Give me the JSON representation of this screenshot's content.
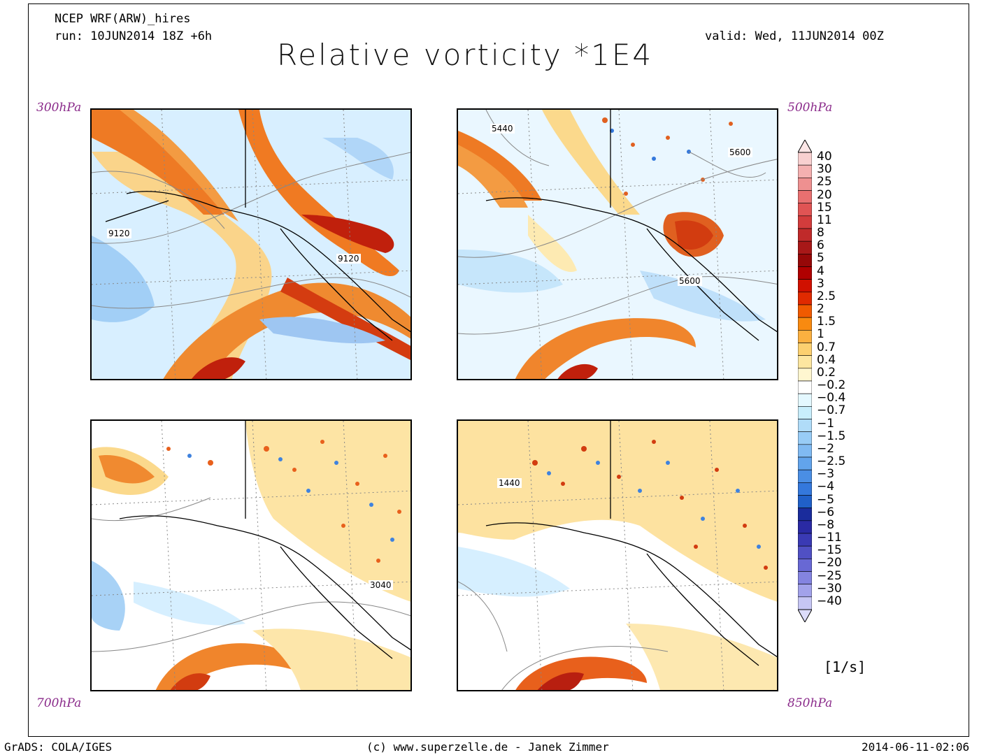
{
  "header": {
    "model": "NCEP WRF(ARW)_hires",
    "run": "run: 10JUN2014 18Z +6h",
    "valid": "valid: Wed, 11JUN2014 00Z",
    "title": "Relative vorticity *1E4"
  },
  "panels": [
    {
      "id": "p300",
      "level": "300hPa",
      "contours": [
        "9120",
        "9120"
      ],
      "colors": {
        "core": "#b81f10",
        "warm": "#f0701c"
      }
    },
    {
      "id": "p500",
      "level": "500hPa",
      "contours": [
        "5440",
        "5600",
        "5600"
      ]
    },
    {
      "id": "p700",
      "level": "700hPa",
      "contours": [
        "3040"
      ]
    },
    {
      "id": "p850",
      "level": "850hPa",
      "contours": [
        "1440"
      ]
    }
  ],
  "colorbar": {
    "labels": [
      "40",
      "30",
      "25",
      "20",
      "15",
      "11",
      "8",
      "6",
      "5",
      "4",
      "3",
      "2.5",
      "2",
      "1.5",
      "1",
      "0.7",
      "0.4",
      "0.2",
      "−0.2",
      "−0.4",
      "−0.7",
      "−1",
      "−1.5",
      "−2",
      "−2.5",
      "−3",
      "−4",
      "−5",
      "−6",
      "−8",
      "−11",
      "−15",
      "−20",
      "−25",
      "−30",
      "−40"
    ],
    "colors": [
      "#f8d0d0",
      "#f4b0b0",
      "#ee9090",
      "#e87070",
      "#e05454",
      "#d23c3c",
      "#c02a2a",
      "#a81818",
      "#960808",
      "#b00000",
      "#d01000",
      "#e02a00",
      "#f05a00",
      "#f88a10",
      "#fbb040",
      "#fcd070",
      "#fde6a0",
      "#fff6d0",
      "#ffffff",
      "#e4f8ff",
      "#c8eefc",
      "#b0dcf8",
      "#98ccf6",
      "#80baf2",
      "#62a4ec",
      "#4a8ee4",
      "#3478dc",
      "#2060c8",
      "#1a2c9c",
      "#2a2aa4",
      "#3a3ab4",
      "#5050c4",
      "#6868d4",
      "#8484e0",
      "#a2a2ea",
      "#c6c6f4"
    ],
    "unit": "[1/s]"
  },
  "footer": {
    "left": "GrADS: COLA/IGES",
    "center": "(c) www.superzelle.de - Janek Zimmer",
    "right": "2014-06-11-02:06"
  }
}
